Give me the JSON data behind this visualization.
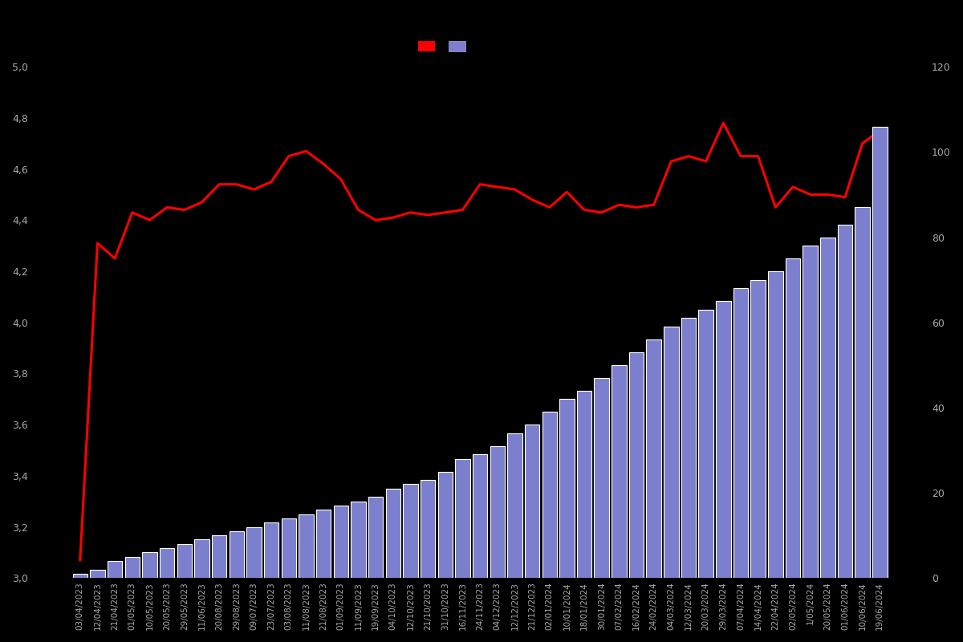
{
  "dates": [
    "03/04/2023",
    "12/04/2023",
    "21/04/2023",
    "01/05/2023",
    "10/05/2023",
    "20/05/2023",
    "29/05/2023",
    "11/06/2023",
    "20/08/2023",
    "29/08/2023",
    "09/07/2023",
    "23/07/2023",
    "03/08/2023",
    "11/08/2023",
    "21/08/2023",
    "01/09/2023",
    "11/09/2023",
    "19/09/2023",
    "04/10/2023",
    "12/10/2023",
    "21/10/2023",
    "31/10/2023",
    "16/11/2023",
    "24/11/2023",
    "04/12/2023",
    "12/12/2023",
    "21/12/2023",
    "02/01/2024",
    "10/01/2024",
    "18/01/2024",
    "30/01/2024",
    "07/02/2024",
    "16/02/2024",
    "24/02/2024",
    "04/03/2024",
    "12/03/2024",
    "20/03/2024",
    "29/03/2024",
    "07/04/2024",
    "14/04/2024",
    "22/04/2024",
    "02/05/2024",
    "1/05/2024",
    "20/05/2024",
    "01/06/2024",
    "10/06/2024",
    "19/06/2024"
  ],
  "bar_values": [
    1,
    2,
    4,
    5,
    6,
    7,
    8,
    9,
    10,
    11,
    12,
    13,
    14,
    15,
    16,
    17,
    18,
    19,
    21,
    22,
    23,
    25,
    28,
    29,
    31,
    34,
    36,
    39,
    42,
    44,
    47,
    50,
    53,
    56,
    59,
    61,
    63,
    65,
    68,
    70,
    72,
    75,
    78,
    80,
    83,
    87,
    106
  ],
  "rating_values": [
    3.07,
    4.31,
    4.25,
    4.43,
    4.4,
    4.45,
    4.44,
    4.47,
    4.54,
    4.54,
    4.52,
    4.55,
    4.65,
    4.67,
    4.62,
    4.56,
    4.44,
    4.4,
    4.41,
    4.43,
    4.42,
    4.43,
    4.44,
    4.54,
    4.53,
    4.52,
    4.48,
    4.45,
    4.51,
    4.44,
    4.43,
    4.46,
    4.45,
    4.46,
    4.63,
    4.65,
    4.63,
    4.78,
    4.65,
    4.65,
    4.45,
    4.53,
    4.5,
    4.5,
    4.49,
    4.7,
    4.75
  ],
  "bar_color": "#7b7fcd",
  "bar_edge_color": "#ffffff",
  "line_color": "#ff0000",
  "background_color": "#000000",
  "text_color": "#aaaaaa",
  "ylim_left": [
    3.0,
    5.0
  ],
  "ylim_right": [
    0,
    120
  ],
  "yticks_left": [
    3.0,
    3.2,
    3.4,
    3.6,
    3.8,
    4.0,
    4.2,
    4.4,
    4.6,
    4.8,
    5.0
  ],
  "yticks_right": [
    0,
    20,
    40,
    60,
    80,
    100,
    120
  ],
  "legend_labels": [
    "",
    ""
  ]
}
